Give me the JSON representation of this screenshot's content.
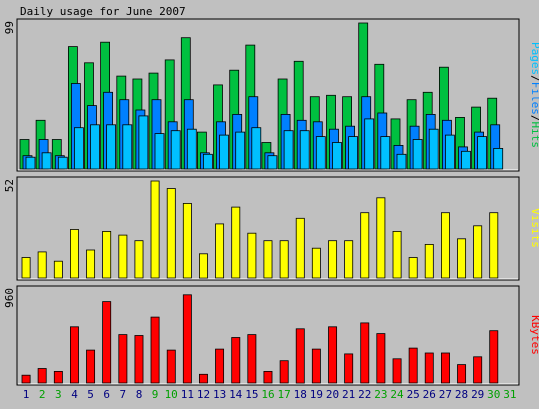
{
  "title": "Daily usage for June 2007",
  "colors": {
    "background": "#c0c0c0",
    "panel": "#c0c0c0",
    "frame": "#000000",
    "hits": "#00c040",
    "files": "#0080ff",
    "pages": "#00c0ff",
    "visits": "#ffff00",
    "kbytes": "#ff0000",
    "weekday_label": "#000080",
    "weekend_label": "#00a000"
  },
  "chart_data": [
    {
      "type": "bar",
      "panel": "pages-files-hits",
      "legend": {
        "parts": [
          {
            "text": "Pages",
            "color": "#00c0ff"
          },
          {
            "text": "/",
            "color": "#000000"
          },
          {
            "text": "Files",
            "color": "#0080ff"
          },
          {
            "text": "/",
            "color": "#000000"
          },
          {
            "text": "Hits",
            "color": "#00c040"
          }
        ]
      },
      "ymax_label": "99",
      "ylim": [
        0,
        99
      ],
      "categories": [
        "1",
        "2",
        "3",
        "4",
        "5",
        "6",
        "7",
        "8",
        "9",
        "10",
        "11",
        "12",
        "13",
        "14",
        "15",
        "16",
        "17",
        "18",
        "19",
        "20",
        "21",
        "22",
        "23",
        "24",
        "25",
        "26",
        "27",
        "28",
        "29",
        "30",
        "31"
      ],
      "series": [
        {
          "name": "Hits",
          "color": "#00c040",
          "values": [
            20,
            33,
            20,
            83,
            72,
            86,
            63,
            61,
            65,
            74,
            89,
            25,
            57,
            67,
            84,
            18,
            61,
            73,
            49,
            50,
            49,
            99,
            71,
            34,
            47,
            52,
            69,
            35,
            42,
            48,
            0
          ]
        },
        {
          "name": "Files",
          "color": "#0080ff",
          "values": [
            9,
            20,
            9,
            58,
            43,
            52,
            47,
            40,
            47,
            32,
            47,
            11,
            32,
            37,
            49,
            11,
            37,
            33,
            32,
            27,
            29,
            49,
            38,
            16,
            29,
            37,
            33,
            15,
            25,
            30,
            0
          ]
        },
        {
          "name": "Pages",
          "color": "#00c0ff",
          "values": [
            8,
            11,
            8,
            28,
            30,
            30,
            30,
            36,
            24,
            26,
            27,
            10,
            23,
            25,
            28,
            9,
            26,
            26,
            22,
            18,
            22,
            34,
            22,
            10,
            20,
            27,
            23,
            12,
            22,
            14,
            0
          ]
        }
      ]
    },
    {
      "type": "bar",
      "panel": "visits",
      "legend": {
        "parts": [
          {
            "text": "Visits",
            "color": "#ffff00"
          }
        ]
      },
      "ymax_label": "52",
      "ylim": [
        0,
        52
      ],
      "categories": [
        "1",
        "2",
        "3",
        "4",
        "5",
        "6",
        "7",
        "8",
        "9",
        "10",
        "11",
        "12",
        "13",
        "14",
        "15",
        "16",
        "17",
        "18",
        "19",
        "20",
        "21",
        "22",
        "23",
        "24",
        "25",
        "26",
        "27",
        "28",
        "29",
        "30",
        "31"
      ],
      "series": [
        {
          "name": "Visits",
          "color": "#ffff00",
          "values": [
            11,
            14,
            9,
            26,
            15,
            25,
            23,
            20,
            52,
            48,
            40,
            13,
            29,
            38,
            24,
            20,
            20,
            32,
            16,
            20,
            20,
            35,
            43,
            25,
            11,
            18,
            35,
            21,
            28,
            35,
            0
          ]
        }
      ]
    },
    {
      "type": "bar",
      "panel": "kbytes",
      "legend": {
        "parts": [
          {
            "text": "KBytes",
            "color": "#ff0000"
          }
        ]
      },
      "ymax_label": "960",
      "ylim": [
        0,
        960
      ],
      "categories": [
        "1",
        "2",
        "3",
        "4",
        "5",
        "6",
        "7",
        "8",
        "9",
        "10",
        "11",
        "12",
        "13",
        "14",
        "15",
        "16",
        "17",
        "18",
        "19",
        "20",
        "21",
        "22",
        "23",
        "24",
        "25",
        "26",
        "27",
        "28",
        "29",
        "30",
        "31"
      ],
      "series": [
        {
          "name": "KBytes",
          "color": "#ff0000",
          "values": [
            81,
            150,
            120,
            580,
            340,
            840,
            500,
            490,
            680,
            340,
            910,
            90,
            350,
            470,
            500,
            120,
            230,
            560,
            350,
            580,
            300,
            620,
            510,
            250,
            360,
            310,
            310,
            190,
            270,
            540,
            0
          ]
        }
      ]
    }
  ],
  "x_labels": [
    "1",
    "2",
    "3",
    "4",
    "5",
    "6",
    "7",
    "8",
    "9",
    "10",
    "11",
    "12",
    "13",
    "14",
    "15",
    "16",
    "17",
    "18",
    "19",
    "20",
    "21",
    "22",
    "23",
    "24",
    "25",
    "26",
    "27",
    "28",
    "29",
    "30",
    "31"
  ],
  "weekend_days": [
    "2",
    "3",
    "9",
    "10",
    "16",
    "17",
    "23",
    "24",
    "30",
    "31"
  ]
}
